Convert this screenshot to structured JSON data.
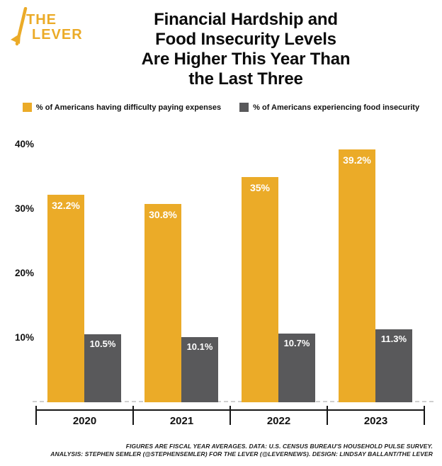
{
  "brand": {
    "logo_line1": "THE",
    "logo_line2": "LEVER",
    "brand_color": "#EBAB28"
  },
  "title": {
    "lines": [
      "Financial Hardship and",
      "Food Insecurity Levels",
      "Are Higher This Year Than",
      "the Last Three"
    ]
  },
  "legend": [
    {
      "label": "% of Americans having difficulty paying expenses",
      "color": "#EBAB28"
    },
    {
      "label": "% of Americans experiencing food insecurity",
      "color": "#59595B"
    }
  ],
  "chart_data": {
    "type": "bar",
    "categories": [
      "2020",
      "2021",
      "2022",
      "2023"
    ],
    "series": [
      {
        "name": "% of Americans having difficulty paying expenses",
        "color": "#EBAB28",
        "values": [
          32.2,
          30.8,
          35,
          39.2
        ],
        "labels": [
          "32.2%",
          "30.8%",
          "35%",
          "39.2%"
        ]
      },
      {
        "name": "% of Americans experiencing food insecurity",
        "color": "#59595B",
        "values": [
          10.5,
          10.1,
          10.7,
          11.3
        ],
        "labels": [
          "10.5%",
          "10.1%",
          "10.7%",
          "11.3%"
        ]
      }
    ],
    "y_ticks": [
      {
        "label": "40%",
        "value": 40
      },
      {
        "label": "30%",
        "value": 30
      },
      {
        "label": "20%",
        "value": 20
      },
      {
        "label": "10%",
        "value": 10
      }
    ],
    "ylim": [
      0,
      42
    ],
    "grid": "dashed zero baseline only",
    "legend_position": "top",
    "value_labels": "inside bar top, white"
  },
  "footer": {
    "line1": "FIGURES ARE FISCAL YEAR AVERAGES. DATA: U.S. CENSUS BUREAU'S HOUSEHOLD PULSE SURVEY.",
    "line2": "ANALYSIS: STEPHEN SEMLER (@STEPHENSEMLER) FOR THE LEVER (@LEVERNEWS). DESIGN: LINDSAY BALLANT/THE LEVER"
  }
}
